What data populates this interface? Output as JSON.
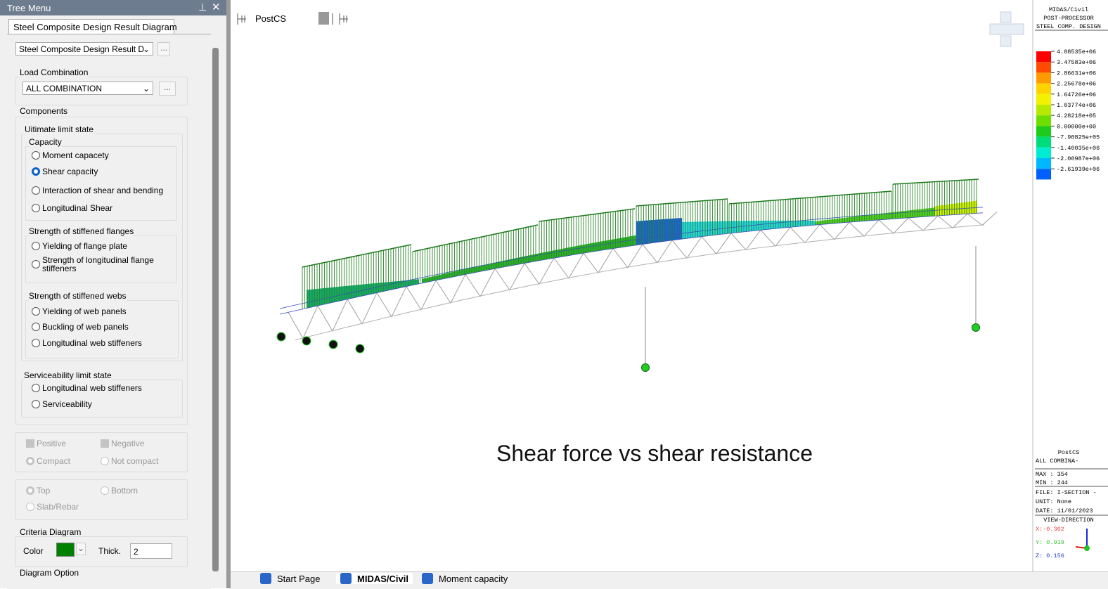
{
  "tree_menu": {
    "title": "Tree Menu",
    "tab": "Steel Composite Design Result Diagram",
    "result_select": "Steel Composite Design Result D",
    "browse_button": "...",
    "load_combination": {
      "label": "Load Combination",
      "value": "ALL COMBINATION"
    },
    "components": {
      "label": "Components",
      "ultimate": {
        "label": "Uitimate limit state",
        "capacity": {
          "label": "Capacity",
          "options": [
            {
              "label": "Moment capacety"
            },
            {
              "label": "Shear capacity",
              "selected": true
            },
            {
              "label": "Interaction of shear and bending"
            },
            {
              "label": "Longitudinal Shear"
            }
          ]
        },
        "flanges": {
          "label": "Strength of stiffened flanges",
          "options": [
            {
              "label": "Yielding of flange plate"
            },
            {
              "label": "Strength of longitudinal flange stiffeners"
            }
          ]
        },
        "webs": {
          "label": "Strength of stiffened webs",
          "options": [
            {
              "label": "Yielding of web panels"
            },
            {
              "label": "Buckling of web panels"
            },
            {
              "label": "Longitudinal web stiffeners"
            }
          ]
        }
      },
      "serviceability": {
        "label": "Serviceability limit state",
        "options": [
          {
            "label": "Longitudinal web stiffeners"
          },
          {
            "label": "Serviceability"
          }
        ]
      }
    },
    "section": {
      "positive": {
        "label": "Positive",
        "checked": true
      },
      "negative": {
        "label": "Negative",
        "checked": true
      },
      "compact": {
        "label": "Compact",
        "selected": true
      },
      "not_compact": {
        "label": "Not compact"
      }
    },
    "position": {
      "top": {
        "label": "Top",
        "selected": true
      },
      "bottom": {
        "label": "Bottom"
      },
      "slab_rebar": {
        "label": "Slab/Rebar"
      }
    },
    "criteria": {
      "label": "Criteria Diagram",
      "color_label": "Color",
      "color": "#008000",
      "thick_label": "Thick.",
      "thick": "2"
    },
    "diagram_option": "Diagram Option"
  },
  "toolbar": {
    "stage": "PostCS"
  },
  "caption": "Shear force vs shear resistance",
  "legend": {
    "header": [
      "MIDAS/Civil",
      "POST-PROCESSOR",
      "STEEL COMP. DESIGN"
    ],
    "entries": [
      {
        "label": "4.08535e+06",
        "color": "#ff0000"
      },
      {
        "label": "3.47583e+06",
        "color": "#ff4a00"
      },
      {
        "label": "2.86631e+06",
        "color": "#ff9a00"
      },
      {
        "label": "2.25678e+06",
        "color": "#ffd200"
      },
      {
        "label": "1.64726e+06",
        "color": "#f2f200"
      },
      {
        "label": "1.03774e+06",
        "color": "#b6e800"
      },
      {
        "label": "4.28218e+05",
        "color": "#6ede00"
      },
      {
        "label": "0.00000e+00",
        "color": "#1ccc1c"
      },
      {
        "label": "-7.90825e+05",
        "color": "#00dc7c"
      },
      {
        "label": "-1.40035e+06",
        "color": "#00ecd0"
      },
      {
        "label": "-2.00987e+06",
        "color": "#00b8ff"
      },
      {
        "label": "-2.61939e+06",
        "color": "#0060ff"
      }
    ],
    "info": {
      "stage": "PostCS",
      "combination": "ALL COMBINA-",
      "max": "MAX : 354",
      "min": "MIN : 244",
      "file": "FILE: I-SECTION -",
      "unit": "UNIT: None",
      "date": "DATE: 11/01/2023",
      "view_direction": "VIEW-DIRECTION",
      "x": "X:-0.362",
      "y": "Y: 0.919",
      "z": "Z: 0.156"
    }
  },
  "tabs": [
    {
      "label": "Start Page"
    },
    {
      "label": "MIDAS/Civil",
      "active": true
    },
    {
      "label": "Moment capacity"
    }
  ]
}
